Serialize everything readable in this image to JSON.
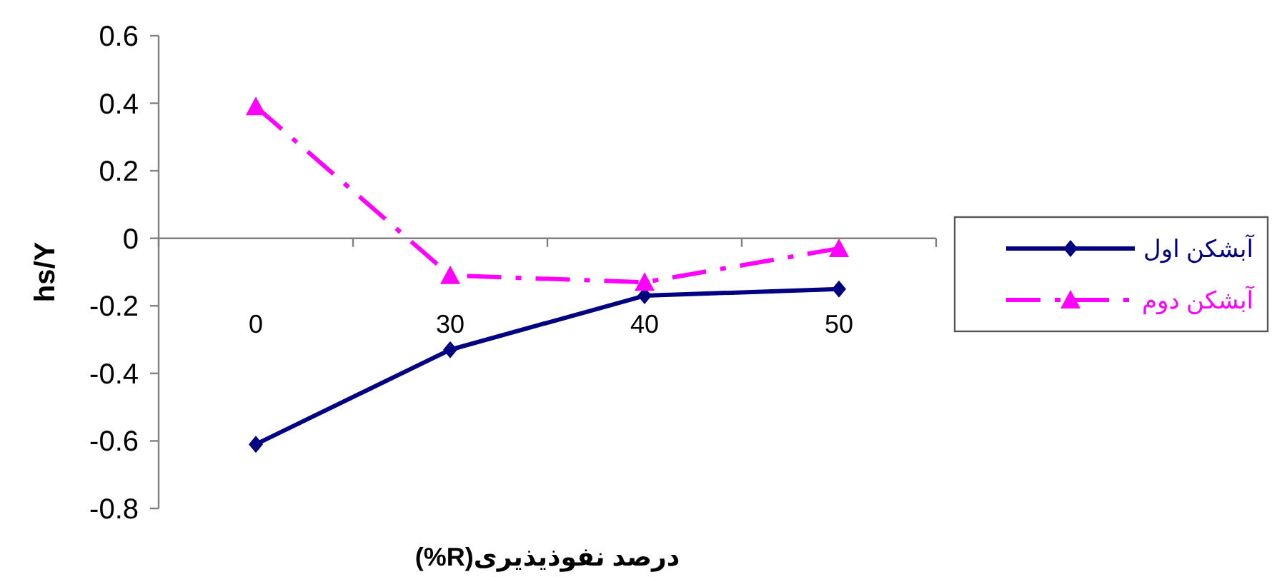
{
  "chart_data": {
    "type": "line",
    "xlabel": "درصد نفوذیذیری(R%)",
    "ylabel": "hs/Y",
    "categories": [
      "0",
      "30",
      "40",
      "50"
    ],
    "ylim": [
      -0.8,
      0.6
    ],
    "yticks": [
      -0.8,
      -0.6,
      -0.4,
      -0.2,
      0,
      0.2,
      0.4,
      0.6
    ],
    "legend": "right",
    "series": [
      {
        "name": "آبشکن اول",
        "color": "#000080",
        "values": [
          -0.61,
          -0.33,
          -0.17,
          -0.15
        ],
        "marker": "diamond",
        "line_style": "solid"
      },
      {
        "name": "آبشکن دوم",
        "color": "#ff00ff",
        "values": [
          0.39,
          -0.11,
          -0.13,
          -0.03
        ],
        "marker": "triangle",
        "line_style": "dashdot"
      }
    ]
  }
}
